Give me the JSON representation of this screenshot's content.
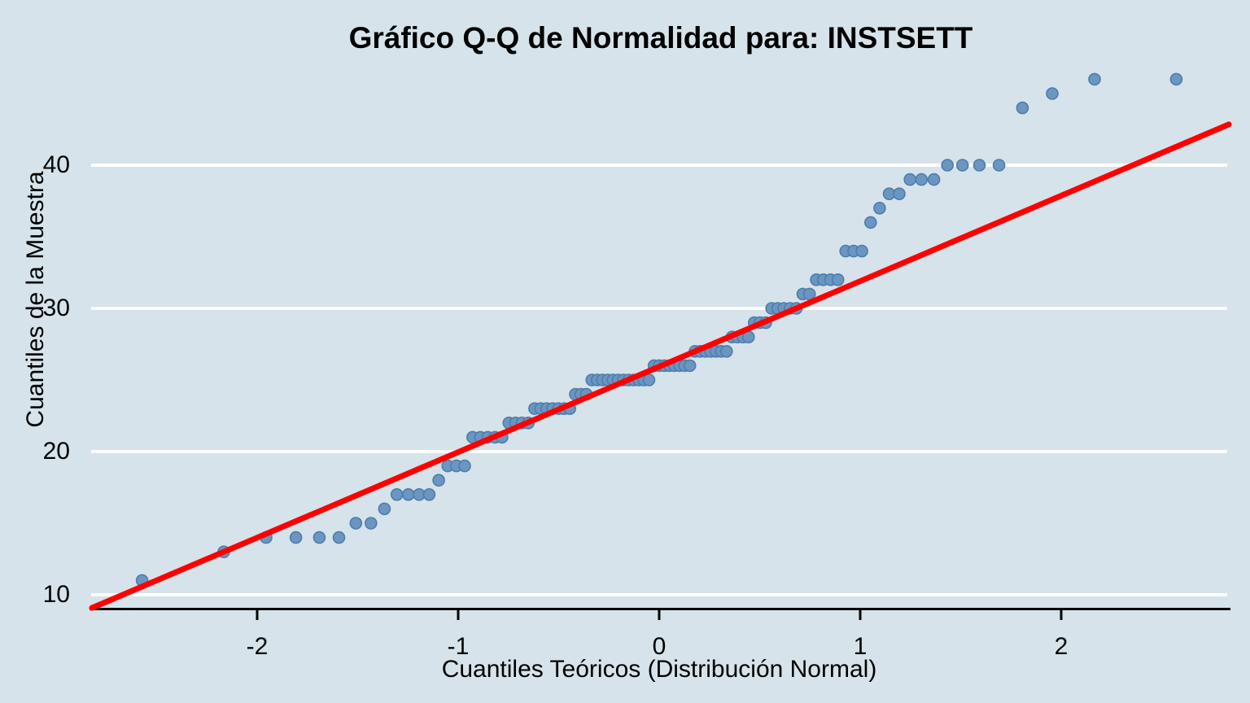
{
  "chart_data": {
    "type": "scatter",
    "variant": "qq-normal-plot",
    "title": "Gráfico Q-Q de Normalidad para: INSTSETT",
    "xlabel": "Cuantiles Teóricos (Distribución Normal)",
    "ylabel": "Cuantiles de la Muestra",
    "x_ticks": [
      -2,
      -1,
      0,
      1,
      2
    ],
    "y_ticks": [
      10,
      20,
      30,
      40
    ],
    "xlim": [
      -2.83,
      2.85
    ],
    "ylim": [
      9.0,
      51.5
    ],
    "grid": "horizontal-only",
    "legend": "none",
    "n": 99,
    "plotting_position": "qnorm((i - 0.5) / n)",
    "sample_values_sorted": [
      11,
      13,
      14,
      14,
      14,
      14,
      15,
      15,
      16,
      17,
      17,
      17,
      17,
      18,
      19,
      19,
      19,
      21,
      21,
      21,
      21,
      21,
      22,
      22,
      22,
      22,
      23,
      23,
      23,
      23,
      23,
      23,
      23,
      24,
      24,
      24,
      25,
      25,
      25,
      25,
      25,
      25,
      25,
      25,
      25,
      25,
      25,
      25,
      26,
      26,
      26,
      26,
      26,
      26,
      26,
      26,
      27,
      27,
      27,
      27,
      27,
      27,
      27,
      28,
      28,
      28,
      28,
      29,
      29,
      29,
      30,
      30,
      30,
      30,
      30,
      31,
      31,
      32,
      32,
      32,
      32,
      34,
      34,
      34,
      36,
      37,
      38,
      38,
      39,
      39,
      39,
      40,
      40,
      40,
      40,
      44,
      45,
      46,
      46
    ],
    "value_counts": {
      "11": 1,
      "13": 1,
      "14": 4,
      "15": 2,
      "16": 1,
      "17": 4,
      "18": 1,
      "19": 3,
      "21": 5,
      "22": 4,
      "23": 7,
      "24": 3,
      "25": 12,
      "26": 8,
      "27": 7,
      "28": 4,
      "29": 3,
      "30": 5,
      "31": 2,
      "32": 4,
      "34": 3,
      "36": 1,
      "37": 1,
      "38": 2,
      "39": 3,
      "40": 4,
      "44": 1,
      "45": 1,
      "46": 2
    },
    "reference_line": {
      "slope": 5.97,
      "intercept": 25.93,
      "x_start": -2.822,
      "x_end": 2.834,
      "color": "#ff0000"
    },
    "colors": {
      "background": "#d6e3ea",
      "point_fill": "#6b96c1",
      "point_stroke": "#4e7dac",
      "gridline": "#ffffff",
      "axis": "#000000",
      "text": "#000000"
    }
  }
}
